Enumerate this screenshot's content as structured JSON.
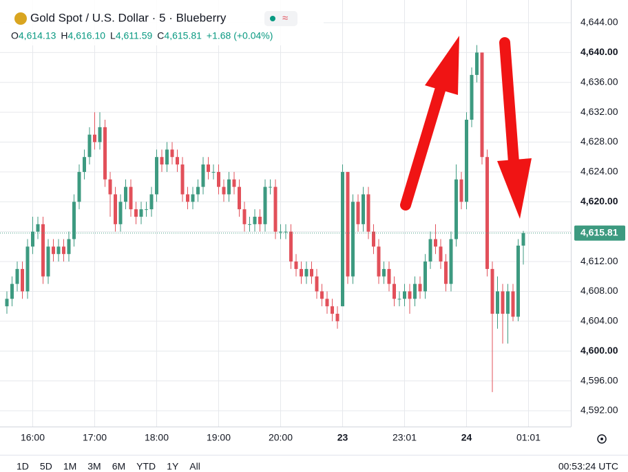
{
  "chart_data": {
    "type": "candlestick",
    "header": {
      "title": "Gold Spot / U.S. Dollar · 5 · Blueberry",
      "ohlc": [
        {
          "key": "O",
          "value": "4,614.13"
        },
        {
          "key": "H",
          "value": "4,616.10"
        },
        {
          "key": "L",
          "value": "4,611.59"
        },
        {
          "key": "C",
          "value": "4,615.81"
        }
      ],
      "change": "+1.68 (+0.04%)"
    },
    "categories": [
      null,
      null,
      null,
      null,
      null,
      "16:00",
      null,
      null,
      null,
      null,
      null,
      null,
      null,
      null,
      null,
      null,
      null,
      "17:00",
      null,
      null,
      null,
      null,
      null,
      null,
      null,
      null,
      null,
      null,
      null,
      "18:00",
      null,
      null,
      null,
      null,
      null,
      null,
      null,
      null,
      null,
      null,
      null,
      "19:00",
      null,
      null,
      null,
      null,
      null,
      null,
      null,
      null,
      null,
      null,
      null,
      "20:00",
      null,
      null,
      null,
      null,
      null,
      null,
      null,
      null,
      null,
      null,
      null,
      "23",
      null,
      null,
      null,
      null,
      null,
      null,
      null,
      null,
      null,
      null,
      null,
      "23:01",
      null,
      null,
      null,
      null,
      null,
      null,
      null,
      null,
      null,
      null,
      null,
      "24",
      null,
      null,
      null,
      null,
      null,
      null,
      null,
      null,
      null,
      null,
      null,
      "01:01"
    ],
    "open": [
      4606,
      4607,
      4609,
      4611,
      4608,
      4614,
      4616,
      4617,
      4610,
      4614,
      4613,
      4614,
      4613,
      4615,
      4620,
      4624,
      4626,
      4629,
      4628,
      4630,
      4623,
      4621,
      4617,
      4620,
      4622,
      4619,
      4618,
      4619,
      4619,
      4621,
      4626,
      4625,
      4627,
      4626,
      4625,
      4621,
      4620,
      4621,
      4622,
      4625,
      4624,
      4624,
      4622,
      4621,
      4623,
      4622,
      4619,
      4617,
      4617,
      4618,
      4617,
      4622,
      4622,
      4616,
      4616,
      4616,
      4612,
      4611,
      4610,
      4611,
      4610,
      4608,
      4607,
      4606,
      4605,
      4606,
      4624,
      4610,
      4620,
      4617,
      4621,
      4616,
      4614,
      4610,
      4611,
      4609,
      4607,
      4607,
      4608,
      4607,
      4609,
      4608,
      4612,
      4615,
      4614,
      4612,
      4609,
      4615,
      4623,
      4620,
      4631,
      4637,
      4640,
      4626,
      4611,
      4605,
      4608,
      4605,
      4608,
      4604.6,
      4614.13,
      null
    ],
    "high": [
      4608,
      4610,
      4612,
      4612,
      4615,
      4618,
      4618,
      4618,
      4615,
      4615,
      4615,
      4615,
      4616,
      4621,
      4625,
      4627,
      4630,
      4632,
      4632,
      4631,
      4624,
      4622,
      4621,
      4623,
      4623,
      4620,
      4620,
      4620,
      4622,
      4627,
      4627,
      4628,
      4628,
      4627,
      4626,
      4622,
      4622,
      4623,
      4626,
      4626,
      4625,
      4625,
      4623,
      4624,
      4624,
      4623,
      4620,
      4618,
      4619,
      4619,
      4623,
      4623,
      4623,
      4617,
      4617,
      4617,
      4613,
      4612,
      4612,
      4612,
      4611,
      4609,
      4608,
      4607,
      4606,
      4625,
      4624,
      4621,
      4621,
      4622,
      4622,
      4617,
      4615,
      4612,
      4612,
      4610,
      4608,
      4609,
      4609,
      4610,
      4610,
      4613,
      4616,
      4617,
      4615,
      4613,
      4616,
      4625,
      4624,
      4632,
      4638,
      4641,
      4640,
      4627,
      4612,
      4610,
      4609,
      4609,
      4609,
      4615,
      4616.1,
      null
    ],
    "low": [
      4605,
      4606,
      4608,
      4607,
      4607,
      4613,
      4615,
      4609,
      4609,
      4612,
      4612,
      4612,
      4612,
      4614,
      4619,
      4623,
      4625,
      4627,
      4627,
      4622,
      4618,
      4616,
      4616,
      4619,
      4618,
      4617,
      4617,
      4618,
      4618,
      4620,
      4624,
      4624,
      4625,
      4624,
      4620,
      4619,
      4619,
      4620,
      4621,
      4623,
      4623,
      4621,
      4620,
      4620,
      4621,
      4618,
      4616,
      4616,
      4616,
      4616,
      4616,
      4621,
      4615,
      4615,
      4615,
      4611,
      4610,
      4609,
      4609,
      4609,
      4607,
      4606,
      4605,
      4604,
      4603,
      4606,
      4609,
      4609,
      4616,
      4616,
      4615,
      4613,
      4609,
      4609,
      4608,
      4606,
      4606,
      4606,
      4605,
      4606,
      4607,
      4607,
      4611,
      4613,
      4611,
      4608,
      4608,
      4614,
      4619,
      4619,
      4630,
      4636,
      4625,
      4610,
      4594.5,
      4603,
      4601,
      4601,
      4604,
      4604,
      4611.59,
      null
    ],
    "close": [
      4607,
      4609,
      4611,
      4608,
      4614,
      4616,
      4617,
      4610,
      4614,
      4613,
      4614,
      4613,
      4615,
      4620,
      4624,
      4626,
      4629,
      4628,
      4630,
      4623,
      4621,
      4617,
      4620,
      4622,
      4619,
      4618,
      4619,
      4619,
      4621,
      4626,
      4625,
      4627,
      4626,
      4625,
      4621,
      4620,
      4621,
      4622,
      4625,
      4624,
      4624,
      4622,
      4621,
      4623,
      4622,
      4619,
      4617,
      4617,
      4618,
      4617,
      4622,
      4622,
      4616,
      4616,
      4616,
      4612,
      4611,
      4610,
      4611,
      4610,
      4608,
      4607,
      4606,
      4605,
      4604,
      4624,
      4610,
      4620,
      4617,
      4621,
      4616,
      4614,
      4610,
      4611,
      4609,
      4607,
      4607,
      4608,
      4607,
      4609,
      4608,
      4612,
      4615,
      4614,
      4612,
      4609,
      4615,
      4623,
      4620,
      4631,
      4637,
      4640,
      4626,
      4611,
      4605,
      4608,
      4605,
      4608,
      4604.6,
      4614.13,
      4615.81,
      null
    ],
    "up_color": "#3d9a80",
    "down_color": "#e2505a",
    "ylim": [
      4589.88,
      4647.04
    ],
    "yticks": [
      {
        "value": 4592,
        "label": "4,592.00"
      },
      {
        "value": 4596,
        "label": "4,596.00"
      },
      {
        "value": 4600,
        "label": "4,600.00"
      },
      {
        "value": 4604,
        "label": "4,604.00"
      },
      {
        "value": 4608,
        "label": "4,608.00"
      },
      {
        "value": 4612,
        "label": "4,612.00"
      },
      {
        "value": 4616,
        "label": "4,616.00"
      },
      {
        "value": 4620,
        "label": "4,620.00"
      },
      {
        "value": 4624,
        "label": "4,624.00"
      },
      {
        "value": 4628,
        "label": "4,628.00"
      },
      {
        "value": 4632,
        "label": "4,632.00"
      },
      {
        "value": 4636,
        "label": "4,636.00"
      },
      {
        "value": 4640,
        "label": "4,640.00"
      },
      {
        "value": 4644,
        "label": "4,644.00"
      }
    ],
    "last_price": {
      "value": 4615.81,
      "label": "4,615.81"
    },
    "grid": true
  },
  "toolbar": {
    "ranges": [
      "1D",
      "5D",
      "1M",
      "3M",
      "6M",
      "YTD",
      "1Y",
      "All"
    ],
    "clock": "00:53:24 UTC"
  }
}
